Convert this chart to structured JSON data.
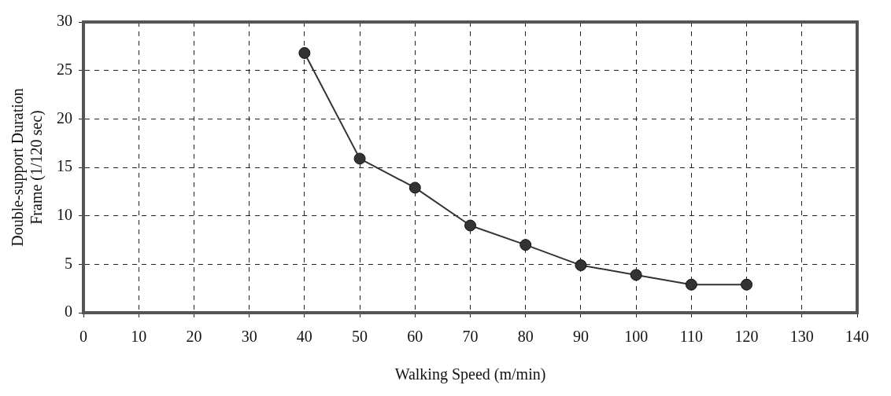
{
  "chart_data": {
    "type": "line",
    "xlabel": "Walking Speed (m/min)",
    "ylabel": "Double-support Duration\nFrame (1/120 sec)",
    "x": [
      40,
      50,
      60,
      70,
      80,
      90,
      100,
      110,
      120
    ],
    "series": [
      {
        "color": "#333333",
        "values": [
          26.8,
          15.9,
          12.9,
          9.0,
          7.0,
          4.9,
          3.9,
          2.9,
          2.9
        ]
      }
    ],
    "xlim": [
      0,
      140
    ],
    "xticks": [
      0,
      10,
      20,
      30,
      40,
      50,
      60,
      70,
      80,
      90,
      100,
      110,
      120,
      130,
      140
    ],
    "ylim": [
      0,
      30
    ],
    "yticks": [
      0,
      5,
      10,
      15,
      20,
      25,
      30
    ],
    "grid": true,
    "legend": false,
    "marker": "circle",
    "line_style": "solid"
  }
}
